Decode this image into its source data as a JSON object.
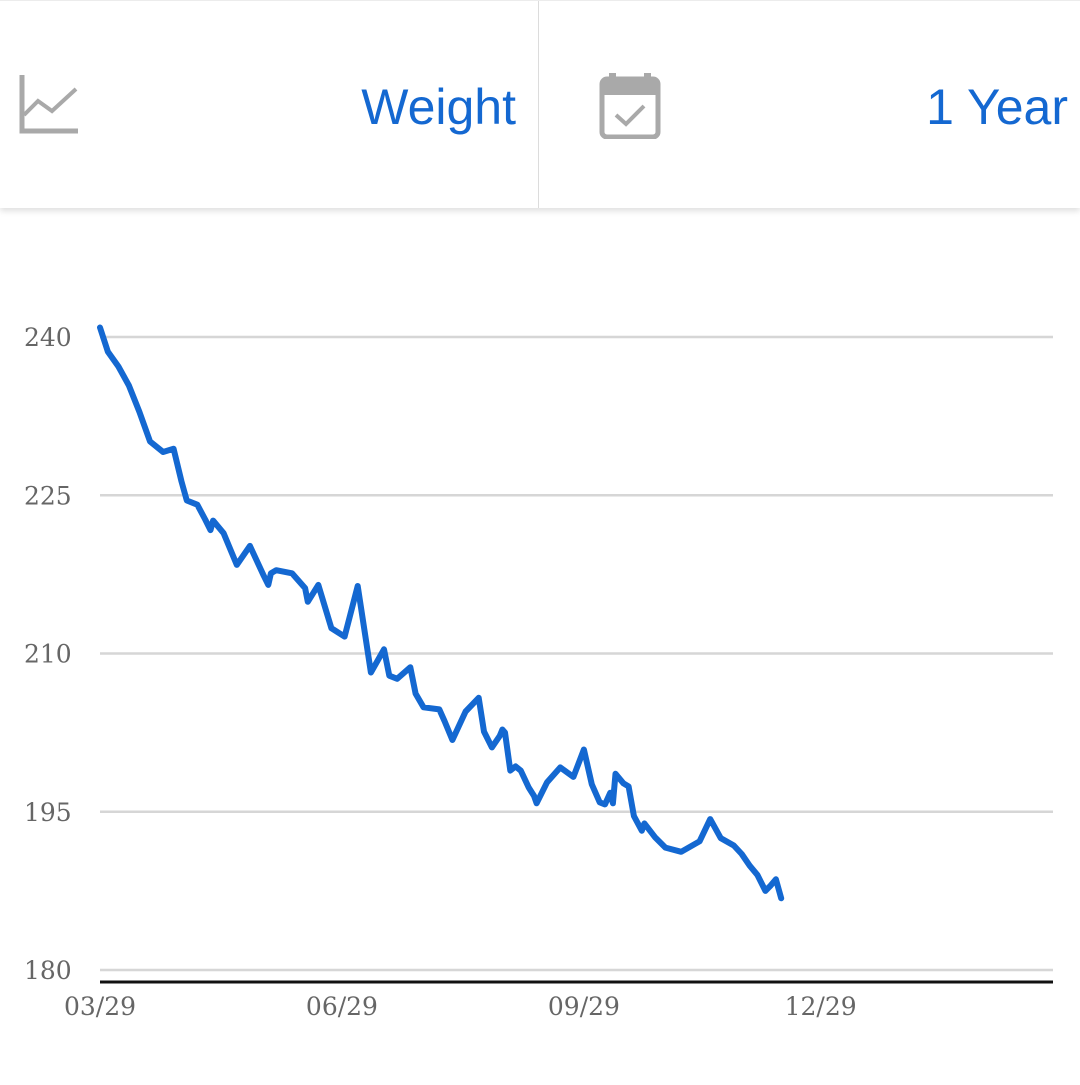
{
  "header": {
    "metric_selector": {
      "label": "Weight",
      "icon": "line-chart-icon"
    },
    "range_selector": {
      "label": "1 Year",
      "icon": "calendar-check-icon"
    }
  },
  "colors": {
    "accent": "#1468d1",
    "icon": "#a9a9a9",
    "grid": "#d6d6d6",
    "axis": "#111111",
    "tick_text": "#666666"
  },
  "chart_data": {
    "type": "line",
    "title": "",
    "xlabel": "",
    "ylabel": "",
    "ylim": [
      180,
      241
    ],
    "y_ticks": [
      240,
      225,
      210,
      195,
      180
    ],
    "x_tick_labels": [
      "03/29",
      "06/29",
      "09/29",
      "12/29"
    ],
    "xlim": [
      "03/29",
      "03/29"
    ],
    "grid": "horizontal",
    "legend": "none",
    "series": [
      {
        "color": "#1468d1",
        "points": [
          [
            "03/29",
            240.9
          ],
          [
            "04/01",
            238.6
          ],
          [
            "04/05",
            237.2
          ],
          [
            "04/09",
            235.4
          ],
          [
            "04/13",
            232.9
          ],
          [
            "04/17",
            230.1
          ],
          [
            "04/22",
            229.1
          ],
          [
            "04/26",
            229.4
          ],
          [
            "04/29",
            226.3
          ],
          [
            "05/01",
            224.5
          ],
          [
            "05/05",
            224.1
          ],
          [
            "05/08",
            222.7
          ],
          [
            "05/10",
            221.7
          ],
          [
            "05/11",
            222.6
          ],
          [
            "05/15",
            221.4
          ],
          [
            "05/20",
            218.4
          ],
          [
            "05/25",
            220.2
          ],
          [
            "05/30",
            217.5
          ],
          [
            "06/01",
            216.5
          ],
          [
            "06/02",
            217.6
          ],
          [
            "06/04",
            217.9
          ],
          [
            "06/10",
            217.6
          ],
          [
            "06/15",
            216.2
          ],
          [
            "06/16",
            214.9
          ],
          [
            "06/20",
            216.5
          ],
          [
            "06/25",
            212.4
          ],
          [
            "06/30",
            211.6
          ],
          [
            "07/05",
            216.4
          ],
          [
            "07/10",
            208.2
          ],
          [
            "07/15",
            210.4
          ],
          [
            "07/17",
            207.9
          ],
          [
            "07/20",
            207.6
          ],
          [
            "07/25",
            208.7
          ],
          [
            "07/27",
            206.2
          ],
          [
            "07/30",
            204.9
          ],
          [
            "08/05",
            204.7
          ],
          [
            "08/07",
            203.6
          ],
          [
            "08/10",
            201.8
          ],
          [
            "08/15",
            204.5
          ],
          [
            "08/20",
            205.8
          ],
          [
            "08/22",
            202.6
          ],
          [
            "08/25",
            201.1
          ],
          [
            "08/28",
            202.2
          ],
          [
            "08/29",
            202.8
          ],
          [
            "08/30",
            202.5
          ],
          [
            "09/01",
            198.9
          ],
          [
            "09/03",
            199.3
          ],
          [
            "09/05",
            198.9
          ],
          [
            "09/08",
            197.3
          ],
          [
            "09/10",
            196.5
          ],
          [
            "09/11",
            195.8
          ],
          [
            "09/15",
            197.8
          ],
          [
            "09/20",
            199.2
          ],
          [
            "09/25",
            198.3
          ],
          [
            "09/29",
            200.9
          ],
          [
            "10/02",
            197.6
          ],
          [
            "10/05",
            195.9
          ],
          [
            "10/07",
            195.7
          ],
          [
            "10/09",
            196.8
          ],
          [
            "10/10",
            195.8
          ],
          [
            "10/11",
            198.6
          ],
          [
            "10/14",
            197.7
          ],
          [
            "10/16",
            197.4
          ],
          [
            "10/18",
            194.6
          ],
          [
            "10/21",
            193.2
          ],
          [
            "10/22",
            193.9
          ],
          [
            "10/26",
            192.6
          ],
          [
            "10/30",
            191.6
          ],
          [
            "11/05",
            191.2
          ],
          [
            "11/12",
            192.2
          ],
          [
            "11/16",
            194.3
          ],
          [
            "11/20",
            192.5
          ],
          [
            "11/25",
            191.8
          ],
          [
            "11/28",
            191.0
          ],
          [
            "12/01",
            189.9
          ],
          [
            "12/04",
            189.0
          ],
          [
            "12/07",
            187.5
          ],
          [
            "12/09",
            188.0
          ],
          [
            "12/11",
            188.6
          ],
          [
            "12/13",
            186.8
          ]
        ]
      }
    ]
  }
}
